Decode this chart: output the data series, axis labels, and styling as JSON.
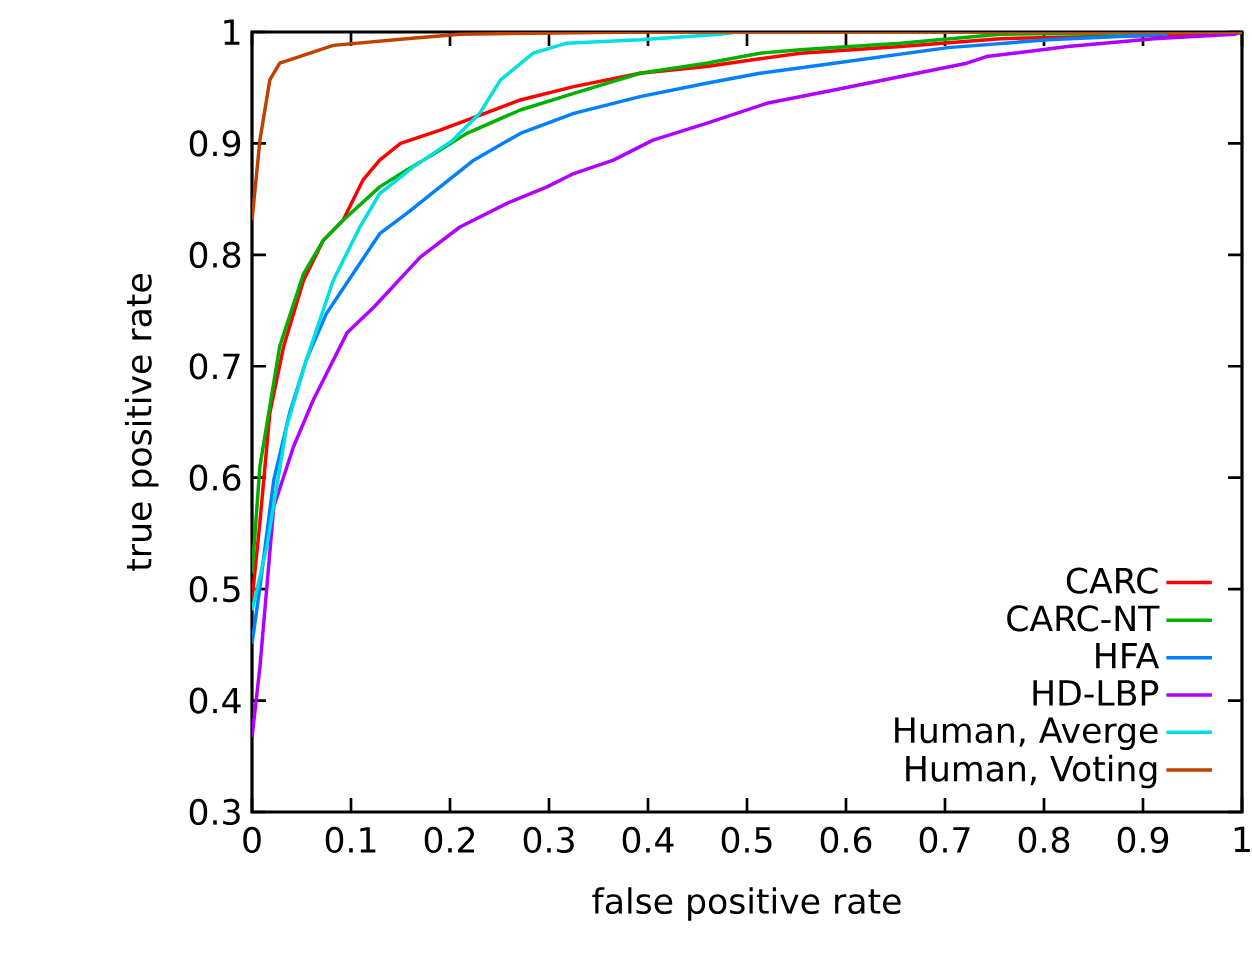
{
  "chart_data": {
    "type": "line",
    "xlabel": "false positive rate",
    "ylabel": "true positive rate",
    "xlim": [
      0,
      1
    ],
    "ylim": [
      0.3,
      1
    ],
    "xticks": [
      0,
      0.1,
      0.2,
      0.3,
      0.4,
      0.5,
      0.6,
      0.7,
      0.8,
      0.9,
      1
    ],
    "yticks": [
      0.3,
      0.4,
      0.5,
      0.6,
      0.7,
      0.8,
      0.9,
      1
    ],
    "grid": false,
    "legend": "bottom right",
    "marker": "none",
    "line_style": "solid",
    "series": [
      {
        "name": "CARC",
        "color": "#ff0000",
        "x": [
          0,
          0.008,
          0.018,
          0.032,
          0.052,
          0.072,
          0.092,
          0.112,
          0.129,
          0.15,
          0.19,
          0.217,
          0.271,
          0.325,
          0.392,
          0.459,
          0.513,
          0.554,
          0.655,
          0.756,
          0.857,
          0.99,
          1
        ],
        "values": [
          0.49,
          0.56,
          0.658,
          0.718,
          0.777,
          0.813,
          0.831,
          0.867,
          0.885,
          0.9,
          0.912,
          0.921,
          0.939,
          0.951,
          0.963,
          0.969,
          0.976,
          0.981,
          0.987,
          0.994,
          0.996,
          0.998,
          1
        ]
      },
      {
        "name": "CARC-NT",
        "color": "#00b000",
        "x": [
          0,
          0.008,
          0.028,
          0.052,
          0.072,
          0.092,
          0.129,
          0.156,
          0.19,
          0.217,
          0.271,
          0.325,
          0.392,
          0.459,
          0.513,
          0.554,
          0.655,
          0.756,
          1
        ],
        "values": [
          0.514,
          0.61,
          0.718,
          0.783,
          0.813,
          0.831,
          0.861,
          0.876,
          0.894,
          0.909,
          0.93,
          0.945,
          0.963,
          0.972,
          0.981,
          0.984,
          0.99,
          0.998,
          1
        ]
      },
      {
        "name": "HFA",
        "color": "#0080ff",
        "x": [
          0,
          0.008,
          0.022,
          0.038,
          0.055,
          0.075,
          0.102,
          0.129,
          0.156,
          0.19,
          0.224,
          0.271,
          0.325,
          0.392,
          0.459,
          0.513,
          0.588,
          0.703,
          0.804,
          0.925
        ],
        "values": [
          0.451,
          0.502,
          0.598,
          0.658,
          0.706,
          0.747,
          0.783,
          0.819,
          0.837,
          0.861,
          0.885,
          0.909,
          0.927,
          0.942,
          0.954,
          0.963,
          0.972,
          0.986,
          0.993,
          0.998
        ]
      },
      {
        "name": "HD-LBP",
        "color": "#b000ff",
        "x": [
          0,
          0.008,
          0.022,
          0.042,
          0.062,
          0.096,
          0.123,
          0.17,
          0.21,
          0.257,
          0.298,
          0.325,
          0.365,
          0.405,
          0.459,
          0.52,
          0.588,
          0.655,
          0.722,
          0.742,
          0.824,
          0.911,
          0.992,
          1
        ],
        "values": [
          0.367,
          0.43,
          0.574,
          0.628,
          0.67,
          0.73,
          0.753,
          0.798,
          0.825,
          0.846,
          0.861,
          0.873,
          0.885,
          0.903,
          0.918,
          0.936,
          0.948,
          0.96,
          0.972,
          0.978,
          0.987,
          0.994,
          0.998,
          1
        ]
      },
      {
        "name": "Human, Averge",
        "color": "#00e0e0",
        "x": [
          0,
          0.015,
          0.035,
          0.055,
          0.082,
          0.109,
          0.129,
          0.163,
          0.203,
          0.23,
          0.251,
          0.284,
          0.318,
          0.392,
          0.473,
          0.49,
          1
        ],
        "values": [
          0.481,
          0.538,
          0.646,
          0.706,
          0.777,
          0.825,
          0.855,
          0.879,
          0.903,
          0.927,
          0.957,
          0.981,
          0.99,
          0.993,
          0.998,
          1,
          1
        ]
      },
      {
        "name": "Human, Voting",
        "color": "#c04000",
        "x": [
          0,
          0.008,
          0.018,
          0.028,
          0.048,
          0.082,
          0.156,
          0.21,
          0.39,
          1
        ],
        "values": [
          0.831,
          0.903,
          0.957,
          0.972,
          0.978,
          0.988,
          0.994,
          0.998,
          1,
          1
        ]
      }
    ]
  }
}
